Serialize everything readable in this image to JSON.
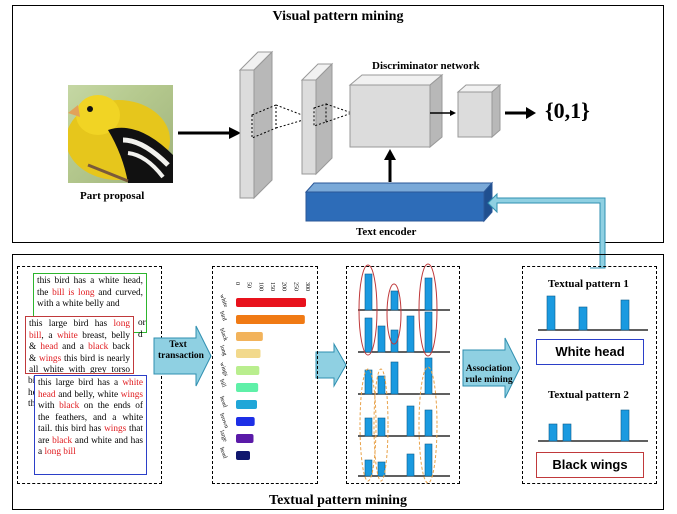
{
  "visual_panel": {
    "title": "Visual pattern mining",
    "part_proposal": "Part proposal",
    "discriminator": "Discriminator network",
    "output": "{0,1}",
    "text_encoder": "Text encoder"
  },
  "textual_panel": {
    "title": "Textual pattern mining",
    "arrow1": [
      "Text",
      "transaction"
    ],
    "arrow2": [
      "Association",
      "rule mining"
    ],
    "pattern1_title": "Textual pattern 1",
    "pattern1_result": "White head",
    "pattern2_title": "Textual pattern 2",
    "pattern2_result": "Black wings",
    "paragraphs": {
      "p1": [
        {
          "t": "this bird has a white head, the "
        },
        {
          "t": "bill is long",
          "r": true
        },
        {
          "t": " and curved, with a white belly and"
        }
      ],
      "p2": [
        {
          "t": "this large bird has "
        },
        {
          "t": "long bill",
          "r": true
        },
        {
          "t": ", a "
        },
        {
          "t": "white",
          "r": true
        },
        {
          "t": " breast, belly & "
        },
        {
          "t": "head",
          "r": true
        },
        {
          "t": " and a "
        },
        {
          "t": "black",
          "r": true
        },
        {
          "t": " back & "
        },
        {
          "t": "wings",
          "r": true
        },
        {
          "t": " this bird is nearly all white with grey torso and feet"
        }
      ],
      "p3": [
        {
          "t": "this large bird has a "
        },
        {
          "t": "white head",
          "r": true
        },
        {
          "t": " and belly, white "
        },
        {
          "t": "wings",
          "r": true
        },
        {
          "t": " with "
        },
        {
          "t": "black",
          "r": true
        },
        {
          "t": " on the ends of the feathers, and a white tail. this bird has "
        },
        {
          "t": "wings",
          "r": true
        },
        {
          "t": " that are "
        },
        {
          "t": "black",
          "r": true
        },
        {
          "t": " and white and has a "
        },
        {
          "t": "long bill",
          "r": true
        }
      ]
    },
    "frag_left_p1": [
      "or",
      "d"
    ],
    "frag_left_p2": [
      "bi",
      "he",
      "th"
    ]
  },
  "chart_data": {
    "type": "bar",
    "orientation": "horizontal",
    "categories": [
      "white",
      "bird",
      "black",
      "long",
      "wings",
      "bill",
      "head",
      "brown",
      "large",
      "head"
    ],
    "values": [
      300,
      295,
      115,
      105,
      100,
      95,
      90,
      80,
      75,
      60
    ],
    "ticks": [
      "0",
      "50",
      "100",
      "150",
      "200",
      "250",
      "300"
    ],
    "colors": [
      "#e8121c",
      "#f07a14",
      "#f2b35b",
      "#f2d98c",
      "#b9ee8e",
      "#5ff0a8",
      "#20a6d8",
      "#1d2fe6",
      "#5a1aa8",
      "#10176e"
    ]
  },
  "colors": {
    "encoder": "#2d6cb8",
    "arrow_fill": "#8fd0e2",
    "bar_blue": "#1a9ae0",
    "green_border": "#2db52d",
    "red_border": "#c0393b",
    "blue_border": "#2b3fc8"
  }
}
